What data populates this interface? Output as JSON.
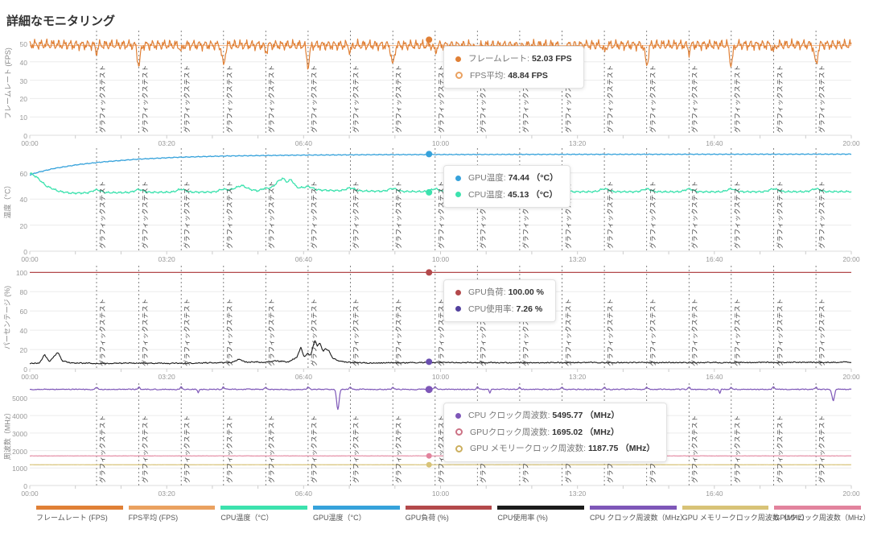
{
  "header": {
    "title": "詳細なモニタリング"
  },
  "x_axis": {
    "ticks": [
      "00:00",
      "03:20",
      "06:40",
      "10:00",
      "13:20",
      "16:40",
      "20:00"
    ],
    "minor_ticks_per_major": 2
  },
  "scene_markers": {
    "label": "グラフィックステスト",
    "positions": [
      0.0813,
      0.1328,
      0.1843,
      0.2358,
      0.2873,
      0.3388,
      0.3903,
      0.4419,
      0.4934,
      0.5449,
      0.5964,
      0.6479,
      0.6994,
      0.7509,
      0.8024,
      0.8539,
      0.9055,
      0.957
    ]
  },
  "cursor_x": 0.486,
  "chart_data": [
    {
      "id": "framerate",
      "type": "line",
      "ylabel": "フレームレート (FPS)",
      "yticks": [
        0,
        10,
        20,
        30,
        40,
        50
      ],
      "ylim": [
        0,
        57
      ],
      "x_range": [
        "00:00",
        "20:00"
      ],
      "grid": true,
      "series": [
        {
          "name": "FPS平均",
          "color": "#f4bd92",
          "width": 1.1,
          "keypoints": [
            [
              0,
              48.84
            ],
            [
              1,
              48.84
            ]
          ],
          "noise": {
            "type": "none",
            "amp": 0,
            "seed": 0
          },
          "events": []
        },
        {
          "name": "フレームレート",
          "color": "#e08036",
          "width": 1.2,
          "keypoints": [
            [
              0,
              49.5
            ],
            [
              0.05,
              49.2
            ],
            [
              0.5,
              49
            ],
            [
              1,
              49.3
            ]
          ],
          "noise": {
            "type": "sine",
            "amp": 2.2,
            "seed": 3
          },
          "events": [
            {
              "at": [
                0.1328,
                0.2358,
                0.3388,
                0.4419,
                0.5449,
                0.6479,
                0.7509,
                0.8539,
                0.957
              ],
              "depth": -11,
              "width": 0.0018
            },
            {
              "at": [
                0.0813,
                0.1843,
                0.2873,
                0.3903,
                0.4934,
                0.5964,
                0.6994,
                0.8024,
                0.9055
              ],
              "depth": -3.5,
              "width": 0.0015
            }
          ]
        }
      ],
      "markers": [
        {
          "y": 52.03,
          "color": "#e08036",
          "r": 4
        }
      ],
      "tooltip": {
        "items": [
          {
            "label": "フレームレート",
            "value": "52.03 FPS",
            "color": "#e08036",
            "filled": true
          },
          {
            "label": "FPS平均",
            "value": "48.84 FPS",
            "color": "#eaa160",
            "filled": false
          }
        ]
      }
    },
    {
      "id": "temperature",
      "type": "line",
      "ylabel": "温度（°C）",
      "yticks": [
        0,
        20,
        40,
        60
      ],
      "ylim": [
        0,
        79
      ],
      "x_range": [
        "00:00",
        "20:00"
      ],
      "grid": true,
      "series": [
        {
          "name": "GPU温度",
          "color": "#36a2db",
          "width": 1.3,
          "keypoints": [
            [
              0,
              58.5
            ],
            [
              0.01,
              60.5
            ],
            [
              0.03,
              63.5
            ],
            [
              0.06,
              66.5
            ],
            [
              0.09,
              68.5
            ],
            [
              0.13,
              70.5
            ],
            [
              0.18,
              72
            ],
            [
              0.24,
              73
            ],
            [
              0.32,
              73.6
            ],
            [
              0.42,
              74
            ],
            [
              0.6,
              74.2
            ],
            [
              0.8,
              74.3
            ],
            [
              1,
              74.4
            ]
          ],
          "noise": {
            "type": "sine",
            "amp": 0.25,
            "seed": 5
          },
          "events": []
        },
        {
          "name": "CPU温度",
          "color": "#3ce2ae",
          "width": 1.3,
          "keypoints": [
            [
              0,
              60
            ],
            [
              0.008,
              57
            ],
            [
              0.02,
              50
            ],
            [
              0.035,
              46
            ],
            [
              0.05,
              44.5
            ],
            [
              0.08,
              44.8
            ],
            [
              0.12,
              45
            ],
            [
              0.16,
              45.2
            ],
            [
              0.2,
              45.3
            ],
            [
              0.24,
              45.4
            ],
            [
              0.25,
              48.5
            ],
            [
              0.258,
              50.5
            ],
            [
              0.268,
              47.5
            ],
            [
              0.278,
              46
            ],
            [
              0.29,
              46.2
            ],
            [
              0.296,
              49
            ],
            [
              0.302,
              53.5
            ],
            [
              0.308,
              56
            ],
            [
              0.313,
              53
            ],
            [
              0.318,
              55
            ],
            [
              0.325,
              49
            ],
            [
              0.335,
              47.5
            ],
            [
              0.35,
              47
            ],
            [
              0.37,
              46.5
            ],
            [
              0.4,
              46.2
            ],
            [
              0.45,
              45.8
            ],
            [
              0.5,
              45.6
            ],
            [
              0.6,
              45.5
            ],
            [
              0.7,
              45.6
            ],
            [
              0.8,
              45.5
            ],
            [
              0.9,
              45.6
            ],
            [
              1,
              45.7
            ]
          ],
          "noise": {
            "type": "sine",
            "amp": 0.55,
            "seed": 8
          },
          "events": [
            {
              "at": [
                0.0813,
                0.1328,
                0.1843,
                0.2358,
                0.2873,
                0.3388,
                0.3903,
                0.4419,
                0.4934,
                0.5449,
                0.5964,
                0.6479,
                0.6994,
                0.7509,
                0.8024,
                0.8539,
                0.9055,
                0.957
              ],
              "depth": 2.2,
              "width": 0.005
            }
          ]
        }
      ],
      "markers": [
        {
          "y": 74.44,
          "color": "#36a2db",
          "r": 4
        },
        {
          "y": 45.13,
          "color": "#3ce2ae",
          "r": 4
        }
      ],
      "tooltip": {
        "items": [
          {
            "label": "GPU温度",
            "value": "74.44 （°C）",
            "color": "#36a2db",
            "filled": true
          },
          {
            "label": "CPU温度",
            "value": "45.13 （°C）",
            "color": "#3ce2ae",
            "filled": true
          }
        ]
      }
    },
    {
      "id": "percentage",
      "type": "line",
      "ylabel": "パーセンテージ (%)",
      "yticks": [
        0,
        20,
        40,
        60,
        80,
        100
      ],
      "ylim": [
        0,
        107
      ],
      "x_range": [
        "00:00",
        "20:00"
      ],
      "grid": true,
      "series": [
        {
          "name": "GPU負荷",
          "color": "#b3494b",
          "width": 1.3,
          "keypoints": [
            [
              0,
              100
            ],
            [
              1,
              100
            ]
          ],
          "noise": {
            "type": "none",
            "amp": 0,
            "seed": 0
          },
          "events": []
        },
        {
          "name": "CPU使用率",
          "color": "#1b1b1b",
          "width": 1.1,
          "keypoints": [
            [
              0,
              5.5
            ],
            [
              0.012,
              6
            ],
            [
              0.018,
              15
            ],
            [
              0.024,
              7
            ],
            [
              0.034,
              17
            ],
            [
              0.04,
              8
            ],
            [
              0.05,
              6
            ],
            [
              0.09,
              5.5
            ],
            [
              0.13,
              6
            ],
            [
              0.17,
              5.5
            ],
            [
              0.21,
              6
            ],
            [
              0.245,
              6.5
            ],
            [
              0.255,
              10
            ],
            [
              0.262,
              7
            ],
            [
              0.285,
              7
            ],
            [
              0.3,
              8
            ],
            [
              0.315,
              7
            ],
            [
              0.325,
              12
            ],
            [
              0.33,
              22
            ],
            [
              0.334,
              12
            ],
            [
              0.338,
              16
            ],
            [
              0.342,
              14
            ],
            [
              0.347,
              30
            ],
            [
              0.35,
              24
            ],
            [
              0.353,
              27
            ],
            [
              0.357,
              18
            ],
            [
              0.36,
              21
            ],
            [
              0.364,
              19
            ],
            [
              0.368,
              12
            ],
            [
              0.373,
              9
            ],
            [
              0.38,
              7.5
            ],
            [
              0.39,
              6.5
            ],
            [
              0.42,
              6
            ],
            [
              0.5,
              6.5
            ],
            [
              0.6,
              6.3
            ],
            [
              0.7,
              6.5
            ],
            [
              0.8,
              6.4
            ],
            [
              0.9,
              6.6
            ],
            [
              1,
              6.8
            ]
          ],
          "noise": {
            "type": "hash",
            "amp": 0.9,
            "seed": 11
          },
          "events": []
        }
      ],
      "markers": [
        {
          "y": 100,
          "color": "#b3494b",
          "r": 4
        },
        {
          "y": 7.26,
          "color": "#6a4fb0",
          "r": 4
        }
      ],
      "tooltip": {
        "items": [
          {
            "label": "GPU負荷",
            "value": "100.00 %",
            "color": "#b3494b",
            "filled": true
          },
          {
            "label": "CPU使用率",
            "value": "7.26 %",
            "color": "#53419e",
            "filled": true
          }
        ]
      }
    },
    {
      "id": "frequency",
      "type": "line",
      "ylabel": "周波数（MHz）",
      "yticks": [
        0,
        1000,
        2000,
        3000,
        4000,
        5000
      ],
      "ylim": [
        0,
        5850
      ],
      "x_range": [
        "00:00",
        "20:00"
      ],
      "grid": true,
      "series": [
        {
          "name": "CPU クロック周波数",
          "color": "#7e57b8",
          "width": 1.2,
          "keypoints": [
            [
              0,
              5500
            ],
            [
              1,
              5500
            ]
          ],
          "noise": {
            "type": "hash",
            "amp": 40,
            "seed": 17
          },
          "events": [
            {
              "at": [
                0.0813,
                0.1328,
                0.1843,
                0.2358,
                0.2873,
                0.3388,
                0.3903,
                0.4419,
                0.4934,
                0.5449,
                0.5964,
                0.6479,
                0.6994,
                0.7509,
                0.8024,
                0.8539,
                0.9055,
                0.957
              ],
              "depth": 130,
              "width": 0.0012
            },
            {
              "at": [
                0.375
              ],
              "depth": -1150,
              "width": 0.0015
            },
            {
              "at": [
                0.978
              ],
              "depth": -650,
              "width": 0.0015
            },
            {
              "at": [
                0.205,
                0.56,
                0.84
              ],
              "depth": -220,
              "width": 0.0008
            }
          ]
        },
        {
          "name": "GPUクロック周波数",
          "color": "#e2839d",
          "width": 1.1,
          "keypoints": [
            [
              0,
              1695
            ],
            [
              1,
              1695
            ]
          ],
          "noise": {
            "type": "hash",
            "amp": 10,
            "seed": 23
          },
          "events": []
        },
        {
          "name": "GPU メモリークロック周波数",
          "color": "#d8c377",
          "width": 1.2,
          "keypoints": [
            [
              0,
              1187
            ],
            [
              1,
              1187
            ]
          ],
          "noise": {
            "type": "hash",
            "amp": 4,
            "seed": 29
          },
          "events": []
        }
      ],
      "markers": [
        {
          "y": 5495.77,
          "color": "#7e57b8",
          "r": 4.5
        },
        {
          "y": 1695.02,
          "color": "#e2839d",
          "r": 3.5
        },
        {
          "y": 1187.75,
          "color": "#d8c377",
          "r": 3.5
        }
      ],
      "tooltip": {
        "items": [
          {
            "label": "CPU クロック周波数",
            "value": "5495.77 （MHz）",
            "color": "#7e57b8",
            "filled": true
          },
          {
            "label": "GPUクロック周波数",
            "value": "1695.02 （MHz）",
            "color": "#cc7285",
            "filled": false
          },
          {
            "label": "GPU メモリークロック周波数",
            "value": "1187.75 （MHz）",
            "color": "#ccaf5e",
            "filled": false
          }
        ]
      }
    }
  ],
  "legend": {
    "items": [
      {
        "label": "フレームレート (FPS)",
        "color": "#e08036"
      },
      {
        "label": "FPS平均 (FPS)",
        "color": "#eaa160"
      },
      {
        "label": "CPU温度（°C）",
        "color": "#3ce2ae"
      },
      {
        "label": "GPU温度（°C）",
        "color": "#36a2db"
      },
      {
        "label": "GPU負荷 (%)",
        "color": "#b3494b"
      },
      {
        "label": "CPU使用率 (%)",
        "color": "#1b1b1b"
      },
      {
        "label": "CPU クロック周波数（MHz）",
        "color": "#7e57b8"
      },
      {
        "label": "GPU メモリークロック周波数（MHz）",
        "color": "#d8c377"
      },
      {
        "label": "GPUクロック周波数（MHz）",
        "color": "#e2839d"
      }
    ]
  }
}
